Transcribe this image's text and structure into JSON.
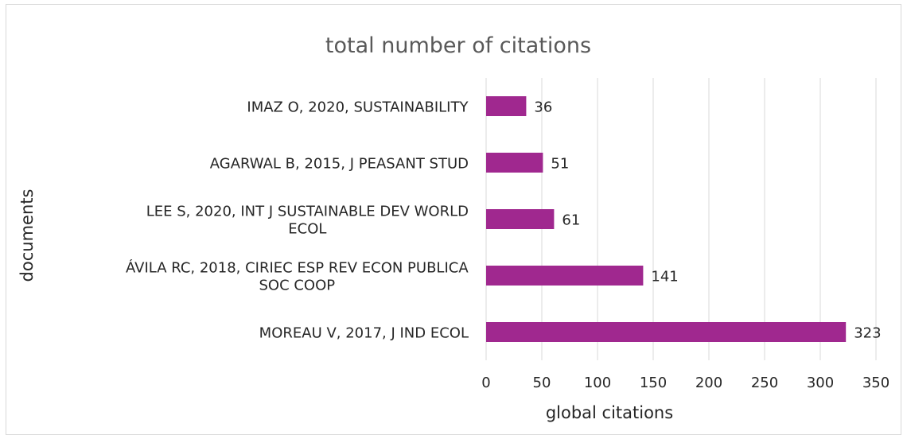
{
  "chart_data": {
    "type": "bar",
    "orientation": "horizontal",
    "title": "total number of citations",
    "xlabel": "global citations",
    "ylabel": "documents",
    "categories": [
      [
        "IMAZ O, 2020, SUSTAINABILITY"
      ],
      [
        "AGARWAL B, 2015, J PEASANT STUD"
      ],
      [
        "LEE S, 2020, INT J SUSTAINABLE DEV WORLD",
        "ECOL"
      ],
      [
        "ÁVILA RC, 2018, CIRIEC ESP REV ECON PUBLICA",
        "SOC COOP"
      ],
      [
        "MOREAU V, 2017, J IND ECOL"
      ]
    ],
    "values": [
      36,
      51,
      61,
      141,
      323
    ],
    "xlim": [
      0,
      350
    ],
    "xticks": [
      0,
      50,
      100,
      150,
      200,
      250,
      300,
      350
    ],
    "grid": true,
    "legend": "none",
    "colors": {
      "bar": "#a0288f"
    }
  }
}
